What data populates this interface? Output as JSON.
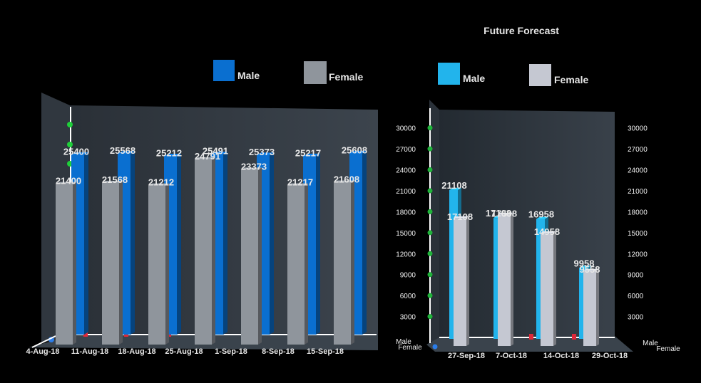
{
  "chart_data": [
    {
      "type": "bar",
      "title": "",
      "categories": [
        "4-Aug-18",
        "11-Aug-18",
        "18-Aug-18",
        "25-Aug-18",
        "1-Sep-18",
        "8-Sep-18",
        "15-Sep-18"
      ],
      "series": [
        {
          "name": "Male",
          "color": "#0a6fd0",
          "values": [
            25400,
            25568,
            25212,
            25491,
            25373,
            25217,
            25608
          ]
        },
        {
          "name": "Female",
          "color": "#8f959c",
          "values": [
            21400,
            21568,
            21212,
            24791,
            23373,
            21217,
            21608
          ]
        }
      ],
      "ylim": [
        0,
        32000
      ],
      "grid": false,
      "legend": "top"
    },
    {
      "type": "bar",
      "title": "Future Forecast",
      "categories": [
        "27-Sep-18",
        "7-Oct-18",
        "14-Oct-18",
        "29-Oct-18"
      ],
      "series": [
        {
          "name": "Male",
          "color": "#22b4ec",
          "values": [
            21108,
            17108,
            16958,
            9958
          ]
        },
        {
          "name": "Female",
          "color": "#c5c8d2",
          "values": [
            17108,
            17598,
            14958,
            9558
          ]
        }
      ],
      "yticks": [
        3000,
        6000,
        9000,
        12000,
        15000,
        18000,
        21000,
        24000,
        27000,
        30000
      ],
      "ylim": [
        0,
        32000
      ],
      "axis_series_labels": [
        "Male",
        "Female"
      ],
      "grid": false,
      "legend": "top"
    }
  ]
}
